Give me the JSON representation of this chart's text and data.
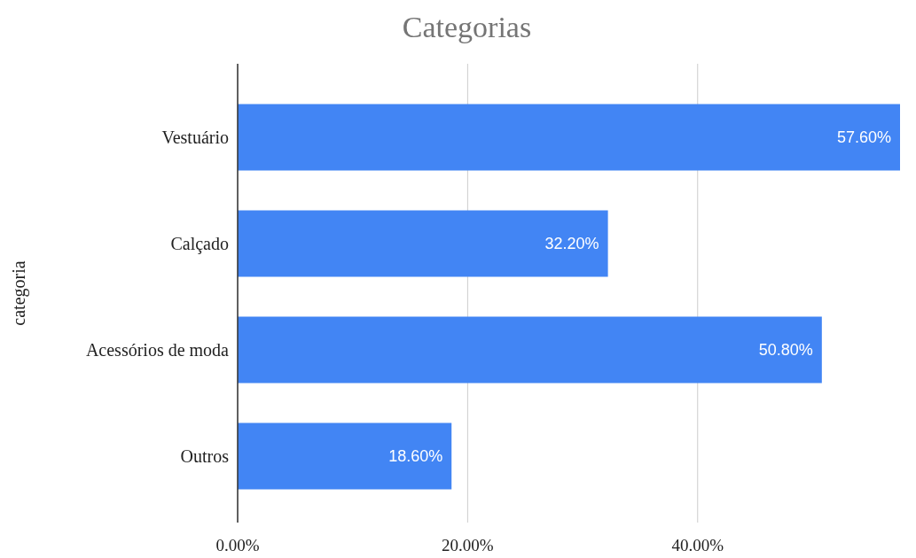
{
  "chart_data": {
    "type": "bar",
    "title": "Categorias",
    "ylabel": "categoria",
    "orientation": "horizontal",
    "categories": [
      "Vestuário",
      "Calçado",
      "Acessórios de moda",
      "Outros"
    ],
    "values": [
      57.6,
      32.2,
      50.8,
      18.6
    ],
    "value_labels": [
      "57.60%",
      "32.20%",
      "50.80%",
      "18.60%"
    ],
    "color": "#4285f4",
    "xlim": [
      0,
      57.6
    ],
    "xticks": [
      {
        "value": 0,
        "label": "0.00%"
      },
      {
        "value": 20,
        "label": "20.00%"
      },
      {
        "value": 40,
        "label": "40.00%"
      }
    ],
    "grid": "x"
  }
}
